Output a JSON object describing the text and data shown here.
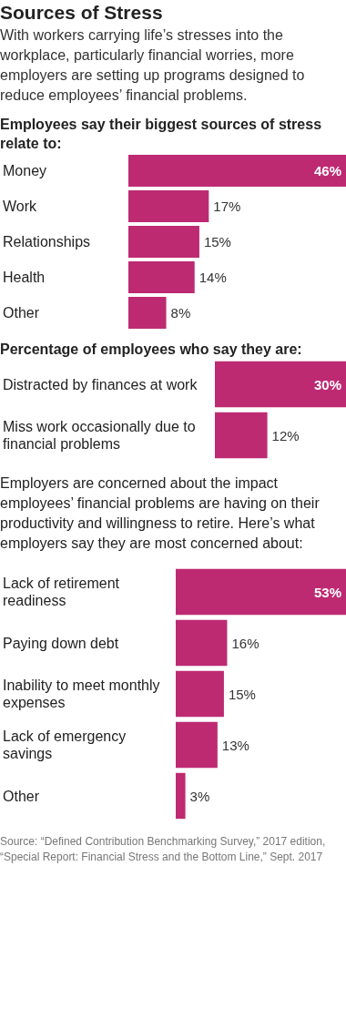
{
  "chart_data": [
    {
      "type": "other",
      "title": "Sources of Stress",
      "subtitle": "With workers carrying life’s stresses into the workplace, particularly financial worries, more employers are setting up programs designed to reduce employees’ financial problems."
    },
    {
      "type": "bar",
      "orientation": "horizontal",
      "title": "Employees say their biggest sources of stress relate to:",
      "categories": [
        "Money",
        "Work",
        "Relationships",
        "Health",
        "Other"
      ],
      "values": [
        46,
        17,
        15,
        14,
        8
      ],
      "value_labels": [
        "46%",
        "17%",
        "15%",
        "14%",
        "8%"
      ],
      "color": "#bd2a72"
    },
    {
      "type": "bar",
      "orientation": "horizontal",
      "title": "Percentage of employees who say they are:",
      "categories": [
        "Distracted by finances at work",
        "Miss work occasionally due to financial problems"
      ],
      "values": [
        30,
        12
      ],
      "value_labels": [
        "30%",
        "12%"
      ],
      "color": "#bd2a72"
    },
    {
      "type": "bar",
      "orientation": "horizontal",
      "title": "Employers are concerned about the impact employees’ financial problems are having on their productivity and willingness to retire. Here’s what employers say they are most concerned about:",
      "categories": [
        "Lack of retirement readiness",
        "Paying down debt",
        "Inability to meet monthly expenses",
        "Lack of emergency savings",
        "Other"
      ],
      "values": [
        53,
        16,
        15,
        13,
        3
      ],
      "value_labels": [
        "53%",
        "16%",
        "15%",
        "13%",
        "3%"
      ],
      "color": "#bd2a72",
      "annotations": [
        "Source:  “Defined Contribution Benchmarking Survey,” 2017 edition, “Special Report: Financial Stress and the Bottom Line,” Sept. 2017"
      ]
    }
  ]
}
